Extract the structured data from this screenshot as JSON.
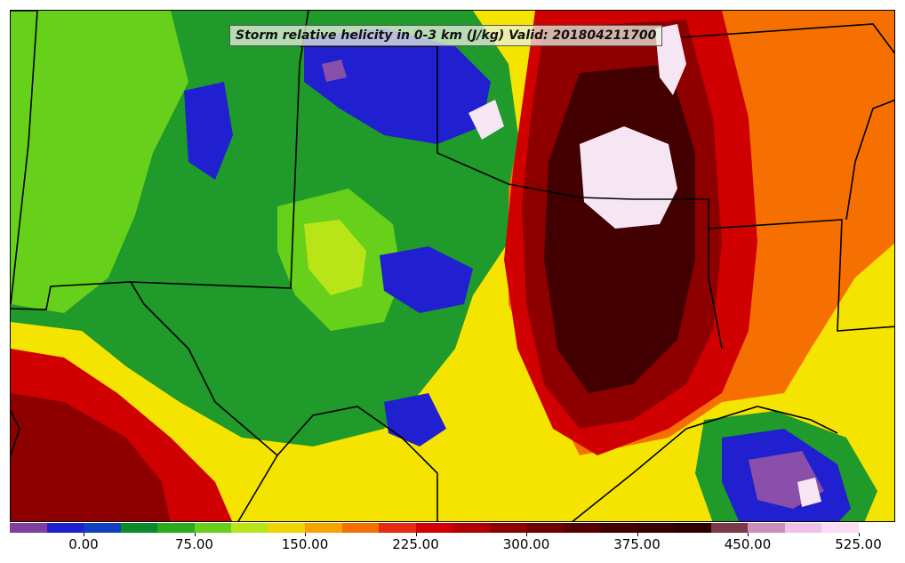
{
  "title": "Storm relative helicity in 0-3 km (J/kg) Valid: 201804211700",
  "colorbar": {
    "colors": [
      "#7f3f9f",
      "#2020d0",
      "#1040c0",
      "#0b8a2a",
      "#2aab1e",
      "#66d01a",
      "#b8e418",
      "#f0d400",
      "#f8a400",
      "#f57000",
      "#e82a10",
      "#d00000",
      "#b00000",
      "#8e0000",
      "#6e0000",
      "#550000",
      "#420000",
      "#380000",
      "#2c0000",
      "#7a3a4a",
      "#c98fb8",
      "#f0c0e8",
      "#fbdcf5",
      "#ffffff"
    ],
    "tick_labels": [
      "0.00",
      "75.00",
      "150.00",
      "225.00",
      "300.00",
      "375.00",
      "450.00",
      "525.00"
    ]
  },
  "legend_icon": "colorbar"
}
